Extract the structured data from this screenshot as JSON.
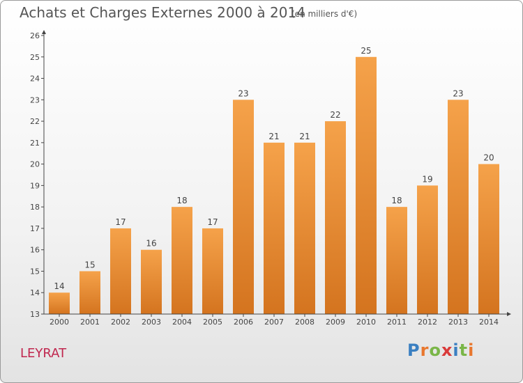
{
  "header": {
    "title": "Achats et Charges Externes 2000 à 2014",
    "subtitle": "(en milliers d'€)"
  },
  "commune": "LEYRAT",
  "logo": {
    "text": "Proxiti",
    "letters": [
      "P",
      "r",
      "o",
      "x",
      "i",
      "t",
      "i"
    ],
    "colors": [
      "#3a7fc1",
      "#e8772e",
      "#7ab648",
      "#d93a3a",
      "#3a7fc1",
      "#7ab648",
      "#e8772e"
    ]
  },
  "colors": {
    "bar_top": "#f5a24a",
    "bar_bottom": "#d4741f",
    "axis": "#444444",
    "commune": "#c0264e"
  },
  "chart_data": {
    "type": "bar",
    "title": "Achats et Charges Externes 2000 à 2014",
    "subtitle": "(en milliers d'€)",
    "categories": [
      "2000",
      "2001",
      "2002",
      "2003",
      "2004",
      "2005",
      "2006",
      "2007",
      "2008",
      "2009",
      "2010",
      "2011",
      "2012",
      "2013",
      "2014"
    ],
    "values": [
      14,
      15,
      17,
      16,
      18,
      17,
      23,
      21,
      21,
      22,
      25,
      18,
      19,
      23,
      20
    ],
    "ylim": [
      13,
      26
    ],
    "yticks": [
      13,
      14,
      15,
      16,
      17,
      18,
      19,
      20,
      21,
      22,
      23,
      24,
      25,
      26
    ],
    "grid": false,
    "legend": "none",
    "data_labels": true
  }
}
